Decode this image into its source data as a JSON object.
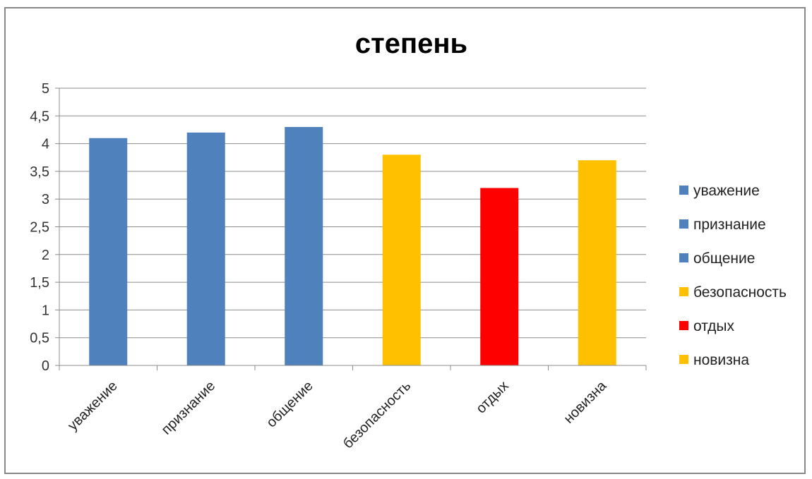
{
  "chart_data": {
    "type": "bar",
    "title": "степень",
    "categories": [
      "уважение",
      "признание",
      "общение",
      "безопасность",
      "отдых",
      "новизна"
    ],
    "values": [
      4.1,
      4.2,
      4.3,
      3.8,
      3.2,
      3.7
    ],
    "colors": [
      "#4f81bd",
      "#4f81bd",
      "#4f81bd",
      "#ffc000",
      "#ff0000",
      "#ffc000"
    ],
    "ylim": [
      0,
      5
    ],
    "yticks": [
      "0",
      "0,5",
      "1",
      "1,5",
      "2",
      "2,5",
      "3",
      "3,5",
      "4",
      "4,5",
      "5"
    ],
    "grid": true,
    "legend_position": "right",
    "legend": [
      {
        "label": "уважение",
        "color": "#4f81bd"
      },
      {
        "label": "признание",
        "color": "#4f81bd"
      },
      {
        "label": "общение",
        "color": "#4f81bd"
      },
      {
        "label": "безопасность",
        "color": "#ffc000"
      },
      {
        "label": "отдых",
        "color": "#ff0000"
      },
      {
        "label": "новизна",
        "color": "#ffc000"
      }
    ]
  }
}
